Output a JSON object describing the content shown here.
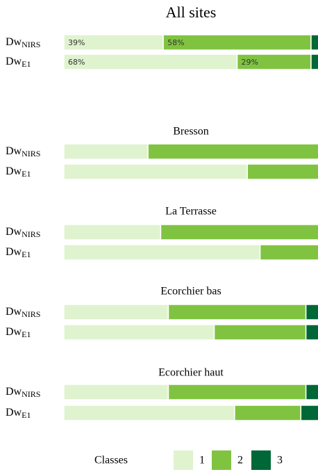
{
  "chart_data": [
    {
      "type": "bar",
      "orientation": "horizontal",
      "stacked": true,
      "title": "All sites",
      "categories": [
        {
          "text": "Dw",
          "sub": "NIRS"
        },
        {
          "text": "Dw",
          "sub": "E1"
        }
      ],
      "xlim": [
        0,
        100
      ],
      "series": [
        {
          "name": "1",
          "color": "#dff3cf",
          "values": [
            39,
            68
          ],
          "value_labels": [
            "39%",
            "68%"
          ]
        },
        {
          "name": "2",
          "color": "#80c341",
          "values": [
            58,
            29
          ],
          "value_labels": [
            "58%",
            "29%"
          ]
        },
        {
          "name": "3",
          "color": "#006837",
          "values": [
            3,
            3
          ],
          "value_labels": [
            null,
            null
          ]
        }
      ]
    },
    {
      "type": "bar",
      "orientation": "horizontal",
      "stacked": true,
      "title": "Bresson",
      "categories": [
        {
          "text": "Dw",
          "sub": "NIRS"
        },
        {
          "text": "Dw",
          "sub": "E1"
        }
      ],
      "xlim": [
        0,
        100
      ],
      "series": [
        {
          "name": "1",
          "color": "#dff3cf",
          "values": [
            33,
            72
          ]
        },
        {
          "name": "2",
          "color": "#80c341",
          "values": [
            67,
            28
          ]
        },
        {
          "name": "3",
          "color": "#006837",
          "values": [
            0,
            0
          ]
        }
      ]
    },
    {
      "type": "bar",
      "orientation": "horizontal",
      "stacked": true,
      "title": "La Terrasse",
      "categories": [
        {
          "text": "Dw",
          "sub": "NIRS"
        },
        {
          "text": "Dw",
          "sub": "E1"
        }
      ],
      "xlim": [
        0,
        100
      ],
      "series": [
        {
          "name": "1",
          "color": "#dff3cf",
          "values": [
            38,
            77
          ]
        },
        {
          "name": "2",
          "color": "#80c341",
          "values": [
            62,
            23
          ]
        },
        {
          "name": "3",
          "color": "#006837",
          "values": [
            0,
            0
          ]
        }
      ]
    },
    {
      "type": "bar",
      "orientation": "horizontal",
      "stacked": true,
      "title": "Ecorchier bas",
      "categories": [
        {
          "text": "Dw",
          "sub": "NIRS"
        },
        {
          "text": "Dw",
          "sub": "E1"
        }
      ],
      "xlim": [
        0,
        100
      ],
      "series": [
        {
          "name": "1",
          "color": "#dff3cf",
          "values": [
            41,
            59
          ]
        },
        {
          "name": "2",
          "color": "#80c341",
          "values": [
            54,
            36
          ]
        },
        {
          "name": "3",
          "color": "#006837",
          "values": [
            5,
            5
          ]
        }
      ]
    },
    {
      "type": "bar",
      "orientation": "horizontal",
      "stacked": true,
      "title": "Ecorchier haut",
      "categories": [
        {
          "text": "Dw",
          "sub": "NIRS"
        },
        {
          "text": "Dw",
          "sub": "E1"
        }
      ],
      "xlim": [
        0,
        100
      ],
      "series": [
        {
          "name": "1",
          "color": "#dff3cf",
          "values": [
            41,
            67
          ]
        },
        {
          "name": "2",
          "color": "#80c341",
          "values": [
            54,
            26
          ]
        },
        {
          "name": "3",
          "color": "#006837",
          "values": [
            5,
            7
          ]
        }
      ]
    }
  ],
  "legend": {
    "title": "Classes"
  }
}
